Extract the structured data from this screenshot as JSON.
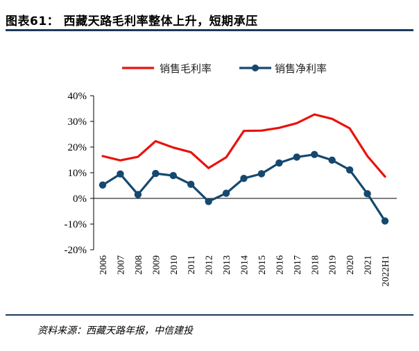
{
  "header": {
    "title": "图表61：  西藏天路毛利率整体上升，短期承压"
  },
  "footer": {
    "source": "资料来源：西藏天路年报，中信建投"
  },
  "colors": {
    "gross_margin": "#e8120c",
    "net_margin": "#15486e",
    "rule": "#1a3a5c"
  },
  "chart_data": {
    "type": "line",
    "categories": [
      "2006",
      "2007",
      "2008",
      "2009",
      "2010",
      "2011",
      "2012",
      "2013",
      "2014",
      "2015",
      "2016",
      "2017",
      "2018",
      "2019",
      "2020",
      "2021",
      "2022H1"
    ],
    "series": [
      {
        "name": "销售毛利率",
        "color": "#e8120c",
        "marker": "none",
        "values": [
          16.5,
          14.8,
          16.2,
          22.3,
          19.8,
          18.0,
          11.8,
          16.0,
          26.3,
          26.4,
          27.5,
          29.3,
          32.7,
          31.0,
          27.3,
          16.5,
          8.5
        ]
      },
      {
        "name": "销售净利率",
        "color": "#15486e",
        "marker": "circle",
        "values": [
          5.2,
          9.5,
          1.5,
          9.7,
          8.9,
          5.5,
          -1.2,
          2.0,
          7.8,
          9.6,
          13.8,
          16.1,
          17.1,
          14.9,
          11.1,
          1.8,
          -8.8
        ]
      }
    ],
    "ylim": [
      -20,
      40
    ],
    "yticks": [
      "-20%",
      "-10%",
      "0%",
      "10%",
      "20%",
      "30%",
      "40%"
    ],
    "ytick_values": [
      -20,
      -10,
      0,
      10,
      20,
      30,
      40
    ],
    "grid": false,
    "legend_position": "top-center",
    "title": "",
    "xlabel": "",
    "ylabel": ""
  }
}
